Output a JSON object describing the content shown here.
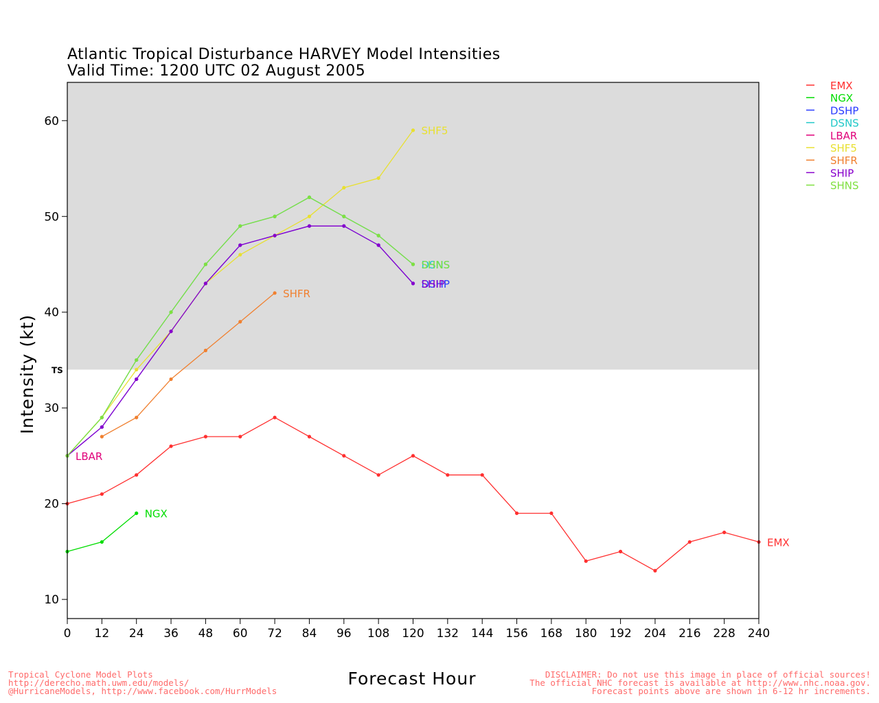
{
  "chart_data": {
    "type": "line",
    "title": "Atlantic Tropical Disturbance HARVEY Model Intensities",
    "subtitle": "Valid Time: 1200 UTC 02 August 2005",
    "xlabel": "Forecast Hour",
    "ylabel": "Intensity (kt)",
    "xlim": [
      0,
      240
    ],
    "ylim": [
      8,
      64
    ],
    "xticks": [
      0,
      12,
      24,
      36,
      48,
      60,
      72,
      84,
      96,
      108,
      120,
      132,
      144,
      156,
      168,
      180,
      192,
      204,
      216,
      228,
      240
    ],
    "yticks": [
      10,
      20,
      30,
      40,
      50,
      60
    ],
    "threshold": {
      "label": "TS",
      "value": 34,
      "shaded_above": true,
      "shade_color": "#dcdcdc"
    },
    "legend_position": "right",
    "grid": false,
    "series": [
      {
        "name": "EMX",
        "color": "#ff3030",
        "x": [
          0,
          12,
          24,
          36,
          48,
          60,
          72,
          84,
          96,
          108,
          120,
          132,
          144,
          156,
          168,
          180,
          192,
          204,
          216,
          228,
          240
        ],
        "values": [
          20,
          21,
          23,
          26,
          27,
          27,
          29,
          27,
          25,
          23,
          25,
          23,
          23,
          19,
          19,
          14,
          15,
          13,
          16,
          17,
          16
        ]
      },
      {
        "name": "NGX",
        "color": "#00dd00",
        "x": [
          0,
          12,
          24
        ],
        "values": [
          15,
          16,
          19
        ]
      },
      {
        "name": "DSHP",
        "color": "#2a3cff",
        "x": [
          0,
          12,
          24,
          36,
          48,
          60,
          72,
          84,
          96,
          108,
          120
        ],
        "values": [
          25,
          28,
          33,
          38,
          43,
          47,
          48,
          49,
          49,
          47,
          43
        ]
      },
      {
        "name": "DSNS",
        "color": "#20c8c8",
        "x": [
          0,
          12,
          24,
          36,
          48,
          60,
          72,
          84,
          96,
          108,
          120
        ],
        "values": [
          25,
          29,
          35,
          40,
          45,
          49,
          50,
          52,
          50,
          48,
          45
        ]
      },
      {
        "name": "LBAR",
        "color": "#e0007a",
        "x": [
          0
        ],
        "values": [
          25
        ]
      },
      {
        "name": "SHF5",
        "color": "#e8e030",
        "x": [
          0,
          12,
          24,
          36,
          48,
          60,
          72,
          84,
          96,
          108,
          120
        ],
        "values": [
          25,
          29,
          34,
          38,
          43,
          46,
          48,
          50,
          53,
          54,
          59
        ]
      },
      {
        "name": "SHFR",
        "color": "#f08030",
        "x": [
          12,
          24,
          36,
          48,
          60,
          72
        ],
        "values": [
          27,
          29,
          33,
          36,
          39,
          42
        ]
      },
      {
        "name": "SHIP",
        "color": "#8800cc",
        "x": [
          0,
          12,
          24,
          36,
          48,
          60,
          72,
          84,
          96,
          108,
          120
        ],
        "values": [
          25,
          28,
          33,
          38,
          43,
          47,
          48,
          49,
          49,
          47,
          43
        ]
      },
      {
        "name": "SHNS",
        "color": "#80e040",
        "x": [
          0,
          12,
          24,
          36,
          48,
          60,
          72,
          84,
          96,
          108,
          120
        ],
        "values": [
          25,
          29,
          35,
          40,
          45,
          49,
          50,
          52,
          50,
          48,
          45
        ]
      }
    ],
    "end_labels": [
      {
        "series": "SHF5",
        "text": "SHF5"
      },
      {
        "series": "DSNS",
        "text": "DSNS"
      },
      {
        "series": "SHNS",
        "text": "SHNS"
      },
      {
        "series": "DSHP",
        "text": "DSHP"
      },
      {
        "series": "SHIP",
        "text": "SHIP"
      },
      {
        "series": "SHFR",
        "text": "SHFR"
      },
      {
        "series": "LBAR",
        "text": "LBAR"
      },
      {
        "series": "NGX",
        "text": "NGX"
      },
      {
        "series": "EMX",
        "text": "EMX"
      }
    ]
  },
  "footer": {
    "left": [
      "Tropical Cyclone Model Plots",
      "http://derecho.math.uwm.edu/models/",
      "@HurricaneModels, http://www.facebook.com/HurrModels"
    ],
    "right": [
      "DISCLAIMER: Do not use this image in place of official sources!",
      "The official NHC forecast is available at http://www.nhc.noaa.gov.",
      "Forecast points above are shown in 6-12 hr increments."
    ]
  }
}
